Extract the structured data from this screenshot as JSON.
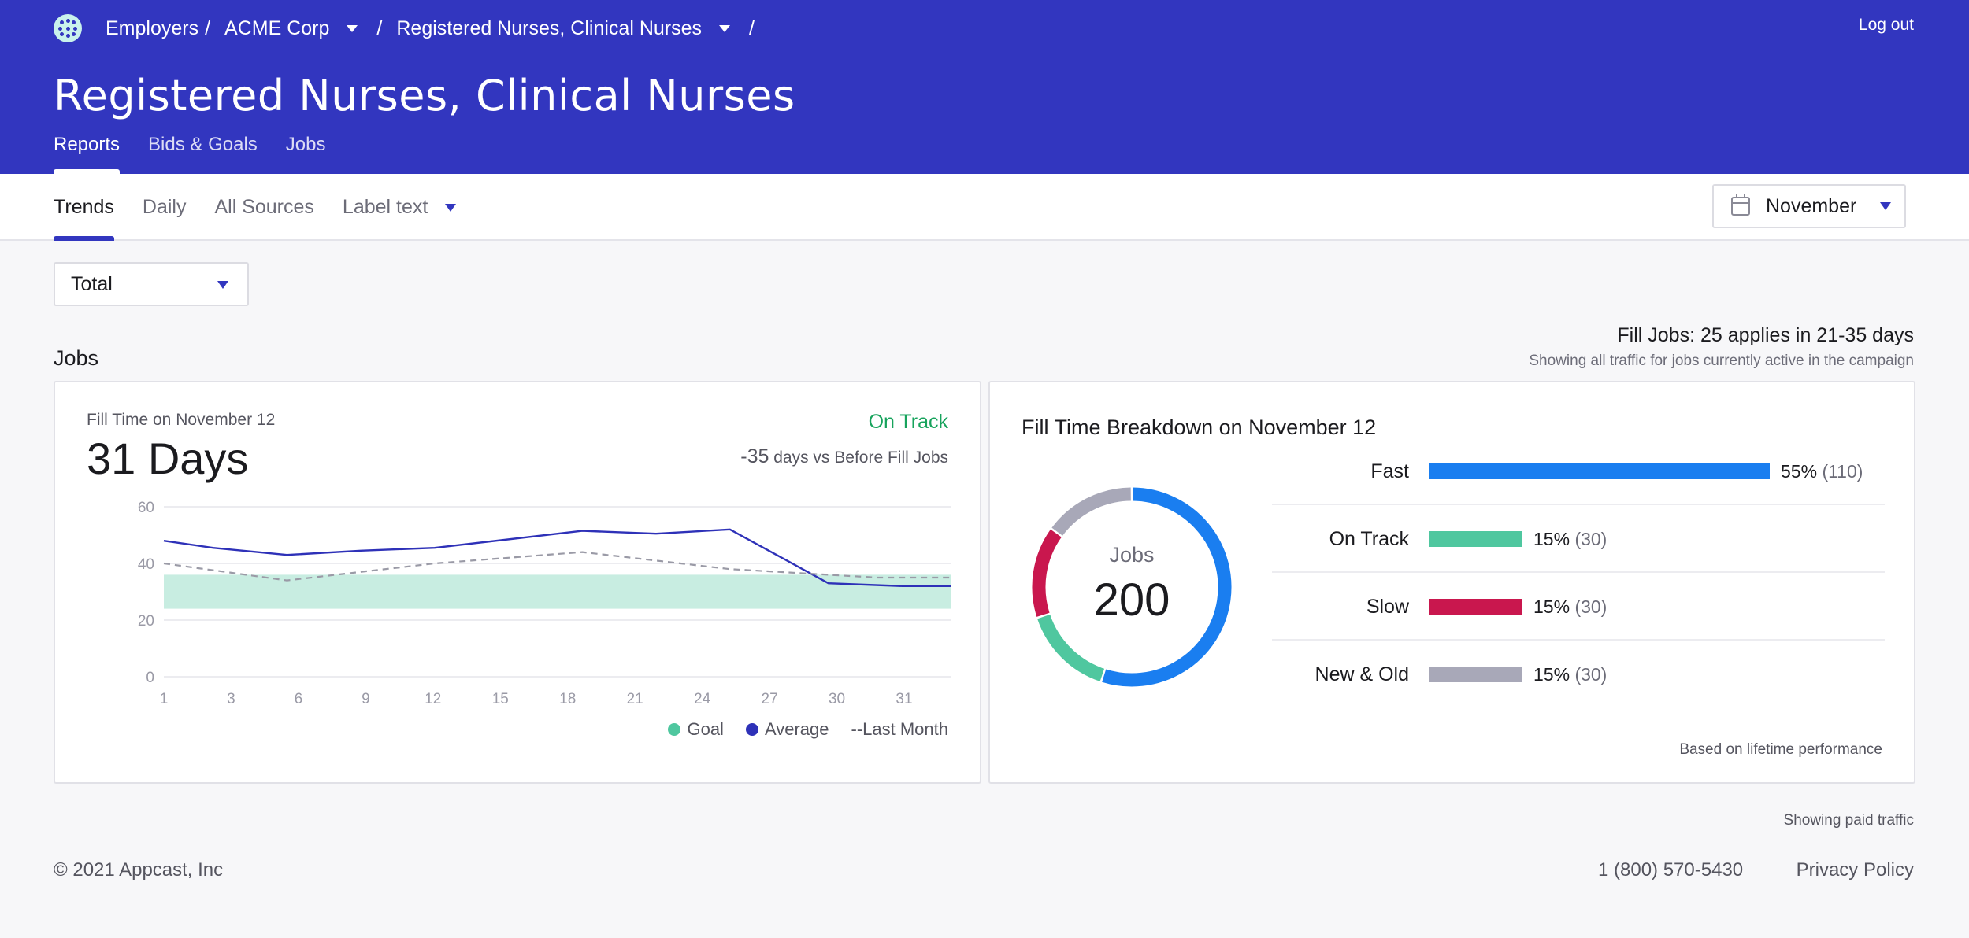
{
  "header": {
    "breadcrumbs": [
      {
        "label": "Employers",
        "sep": "/",
        "has_caret": false
      },
      {
        "label": "ACME Corp",
        "sep": "/",
        "has_caret": true
      },
      {
        "label": "Registered Nurses, Clinical Nurses",
        "sep": "/",
        "has_caret": true
      }
    ],
    "logout_label": "Log out",
    "title": "Registered Nurses, Clinical Nurses",
    "tabs": [
      "Reports",
      "Bids & Goals",
      "Jobs"
    ],
    "active_tab": "Reports",
    "bg_color": "#3236bf"
  },
  "subnav": {
    "tabs": [
      "Trends",
      "Daily",
      "All Sources"
    ],
    "label_text": "Label text",
    "active_tab": "Trends",
    "month_value": "November",
    "icon": "calendar-icon"
  },
  "filter": {
    "total_value": "Total"
  },
  "section": {
    "title": "Jobs",
    "fill_jobs": "Fill Jobs: 25 applies in 21-35 days",
    "fill_subtitle": "Showing all traffic for jobs currently active in the campaign"
  },
  "fill_time": {
    "label": "Fill Time on November 12",
    "value": "31 Days",
    "status": "On Track",
    "vs_number": "-35",
    "vs_text": " days vs Before Fill Jobs",
    "status_color": "#17a35c"
  },
  "chart_data": {
    "type": "line",
    "ylim": [
      0,
      60
    ],
    "yticks": [
      0,
      20,
      40,
      60
    ],
    "xticks": [
      "1",
      "3",
      "6",
      "9",
      "12",
      "15",
      "18",
      "21",
      "24",
      "27",
      "30",
      "31"
    ],
    "goal_band": [
      24,
      36
    ],
    "series": [
      {
        "name": "Average",
        "color": "#2e31b8",
        "style": "solid",
        "x": [
          1,
          3,
          6,
          9,
          12,
          18,
          21,
          24,
          28,
          31,
          33
        ],
        "y": [
          48,
          45.5,
          43,
          44.5,
          45.5,
          51.5,
          50.5,
          52,
          33,
          32,
          32
        ]
      },
      {
        "name": "Last Month",
        "color": "#9a9aa6",
        "style": "dashed",
        "x": [
          1,
          6,
          12,
          18,
          24,
          30,
          33
        ],
        "y": [
          40,
          34,
          40,
          44,
          38,
          35,
          35
        ]
      }
    ],
    "legend": [
      {
        "label": "Goal",
        "color": "#4fc79f",
        "marker": "dot"
      },
      {
        "label": "Average",
        "color": "#2e31b8",
        "marker": "dot"
      },
      {
        "label": "--Last Month",
        "color": "#55555f",
        "marker": "none"
      }
    ],
    "xlabel": "",
    "ylabel": "",
    "grid": true,
    "legend_position": "bottom-right"
  },
  "breakdown": {
    "title": "Fill Time Breakdown on November 12",
    "donut_label": "Jobs",
    "donut_total": "200",
    "items": [
      {
        "name": "Fast",
        "pct": "55%",
        "count": "(110)",
        "value": 55,
        "color": "#1a7ef0"
      },
      {
        "name": "On Track",
        "pct": "15%",
        "count": "(30)",
        "value": 15,
        "color": "#4fc79f"
      },
      {
        "name": "Slow",
        "pct": "15%",
        "count": "(30)",
        "value": 15,
        "color": "#c9174e"
      },
      {
        "name": "New & Old",
        "pct": "15%",
        "count": "(30)",
        "value": 15,
        "color": "#a8a8b8"
      }
    ],
    "note": "Based on lifetime performance"
  },
  "footer": {
    "showing_paid": "Showing paid traffic",
    "copyright": "© 2021 Appcast, Inc",
    "phone": "1 (800) 570-5430",
    "privacy": "Privacy Policy"
  }
}
